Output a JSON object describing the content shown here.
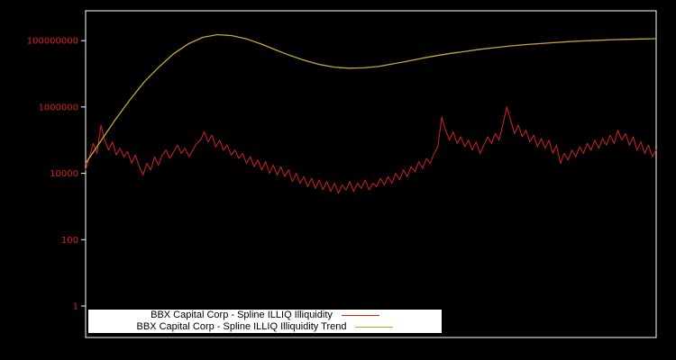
{
  "window": {
    "background": "#000000",
    "plot_border_color": "#ffffff"
  },
  "chart_data": {
    "type": "line",
    "title": "",
    "xlabel": "",
    "ylabel": "",
    "y_scale": "log10",
    "ylim_log10": [
      -0.95,
      8.9
    ],
    "grid": false,
    "tick_label_color": "#d62020",
    "y_ticks": [
      {
        "label": "1",
        "log10": 0
      },
      {
        "label": "100",
        "log10": 2
      },
      {
        "label": "10000",
        "log10": 4
      },
      {
        "label": "1000000",
        "log10": 6
      },
      {
        "label": "100000000",
        "log10": 8
      }
    ],
    "series": [
      {
        "name": "BBX Capital Corp - Spline ILLIQ Illiquidity",
        "color": "#d62020",
        "stroke_width": 1,
        "values_log10": [
          4.1,
          4.5,
          4.9,
          4.6,
          5.45,
          5.0,
          4.7,
          4.95,
          4.55,
          4.75,
          4.5,
          4.65,
          4.3,
          4.55,
          4.2,
          3.95,
          4.3,
          4.1,
          4.5,
          4.25,
          4.55,
          4.7,
          4.45,
          4.65,
          4.85,
          4.6,
          4.75,
          4.5,
          4.7,
          4.9,
          5.0,
          5.25,
          4.95,
          5.15,
          4.8,
          5.0,
          4.7,
          4.85,
          4.55,
          4.7,
          4.45,
          4.6,
          4.3,
          4.5,
          4.2,
          4.4,
          4.1,
          4.35,
          4.0,
          4.25,
          3.95,
          4.2,
          3.9,
          4.1,
          3.75,
          4.0,
          3.7,
          3.9,
          3.6,
          3.85,
          3.55,
          3.8,
          3.5,
          3.75,
          3.45,
          3.7,
          3.4,
          3.65,
          3.5,
          3.75,
          3.45,
          3.7,
          3.55,
          3.8,
          3.5,
          3.7,
          3.6,
          3.85,
          3.65,
          3.9,
          3.7,
          4.0,
          3.8,
          4.1,
          3.9,
          4.2,
          4.05,
          4.35,
          4.15,
          4.45,
          4.3,
          4.6,
          4.8,
          5.7,
          5.3,
          5.0,
          5.25,
          4.9,
          5.1,
          4.8,
          5.0,
          4.7,
          4.95,
          4.6,
          4.85,
          5.1,
          4.9,
          5.2,
          5.0,
          5.5,
          6.0,
          5.6,
          5.2,
          5.45,
          5.1,
          5.3,
          4.95,
          5.15,
          4.8,
          5.05,
          4.75,
          5.0,
          4.6,
          4.85,
          4.3,
          4.6,
          4.4,
          4.7,
          4.5,
          4.8,
          4.6,
          4.9,
          4.7,
          5.0,
          4.75,
          5.05,
          4.85,
          5.15,
          4.9,
          5.3,
          5.0,
          5.2,
          4.85,
          5.1,
          4.7,
          4.95,
          4.6,
          4.85,
          4.5,
          4.7
        ]
      },
      {
        "name": "BBX Capital Corp - Spline ILLIQ Illiquidity Trend",
        "color": "#c2a633",
        "stroke_width": 1.3,
        "values_log10": [
          4.3,
          4.95,
          5.6,
          6.2,
          6.75,
          7.2,
          7.6,
          7.9,
          8.1,
          8.18,
          8.15,
          8.05,
          7.9,
          7.72,
          7.55,
          7.4,
          7.28,
          7.2,
          7.17,
          7.18,
          7.22,
          7.3,
          7.38,
          7.47,
          7.55,
          7.62,
          7.68,
          7.74,
          7.79,
          7.84,
          7.88,
          7.91,
          7.94,
          7.97,
          7.99,
          8.01,
          8.03,
          8.04,
          8.05,
          8.06
        ]
      }
    ],
    "legend": {
      "position": "bottom-center",
      "items": [
        {
          "label": "BBX Capital Corp - Spline ILLIQ Illiquidity",
          "color": "#d62020"
        },
        {
          "label": "BBX Capital Corp - Spline ILLIQ Illiquidity Trend",
          "color": "#c2a633"
        }
      ]
    }
  }
}
